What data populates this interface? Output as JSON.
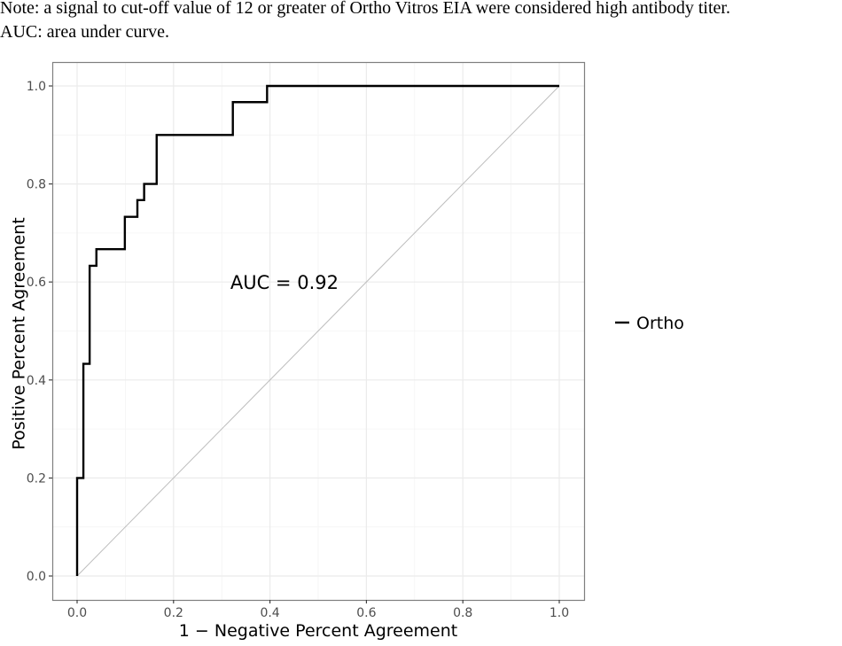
{
  "note": {
    "line1": "Note: a signal to cut-off value of 12 or greater of Ortho Vitros EIA were considered high antibody titer.",
    "line2": "AUC: area under curve."
  },
  "chart_data": {
    "type": "line",
    "title": "",
    "xlabel": "1 − Negative Percent Agreement",
    "ylabel": "Positive Percent Agreement",
    "xlim": [
      0,
      1
    ],
    "ylim": [
      0,
      1
    ],
    "x_ticks": [
      "0.0",
      "0.2",
      "0.4",
      "0.6",
      "0.8",
      "1.0"
    ],
    "y_ticks": [
      "0.0",
      "0.2",
      "0.4",
      "0.6",
      "0.8",
      "1.0"
    ],
    "grid": true,
    "legend_position": "right",
    "series": [
      {
        "name": "Ortho",
        "color": "#000000",
        "step": true,
        "x": [
          0.0,
          0.0,
          0.013,
          0.013,
          0.026,
          0.026,
          0.04,
          0.04,
          0.099,
          0.099,
          0.125,
          0.125,
          0.139,
          0.139,
          0.165,
          0.165,
          0.323,
          0.323,
          0.394,
          0.394,
          1.0
        ],
        "y": [
          0.0,
          0.2,
          0.2,
          0.433,
          0.433,
          0.633,
          0.633,
          0.667,
          0.667,
          0.733,
          0.733,
          0.767,
          0.767,
          0.8,
          0.8,
          0.9,
          0.9,
          0.967,
          0.967,
          1.0,
          1.0
        ]
      }
    ],
    "reference_line": {
      "x": [
        0,
        1
      ],
      "y": [
        0,
        1
      ],
      "color": "#bdbdbd"
    },
    "annotations": [
      {
        "text": "AUC = 0.92",
        "x": 0.43,
        "y": 0.597
      }
    ]
  },
  "colors": {
    "panel_border": "#7f7f7f",
    "grid_major": "#ebebeb",
    "grid_minor": "#f4f4f4",
    "curve": "#000000",
    "reference": "#bdbdbd"
  }
}
